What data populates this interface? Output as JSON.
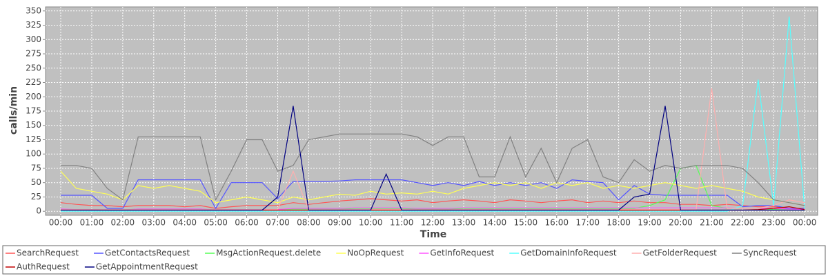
{
  "chart_data": {
    "type": "line",
    "xlabel": "Time",
    "ylabel": "calls/min",
    "x": [
      0,
      0.5,
      1,
      1.5,
      2,
      2.5,
      3,
      3.5,
      4,
      4.5,
      5,
      5.5,
      6,
      6.5,
      7,
      7.5,
      8,
      8.5,
      9,
      9.5,
      10,
      10.5,
      11,
      11.5,
      12,
      12.5,
      13,
      13.5,
      14,
      14.5,
      15,
      15.5,
      16,
      16.5,
      17,
      17.5,
      18,
      18.5,
      19,
      19.5,
      20,
      20.5,
      21,
      21.5,
      22,
      22.5,
      23,
      23.5,
      24
    ],
    "xlim": [
      -0.49,
      24.42
    ],
    "xticks": [
      {
        "value": 0,
        "label": "00:00"
      },
      {
        "value": 1,
        "label": "01:00"
      },
      {
        "value": 2,
        "label": "02:00"
      },
      {
        "value": 3,
        "label": "03:00"
      },
      {
        "value": 4,
        "label": "04:00"
      },
      {
        "value": 5,
        "label": "05:00"
      },
      {
        "value": 6,
        "label": "06:00"
      },
      {
        "value": 7,
        "label": "07:00"
      },
      {
        "value": 8,
        "label": "08:00"
      },
      {
        "value": 9,
        "label": "09:00"
      },
      {
        "value": 10,
        "label": "10:00"
      },
      {
        "value": 11,
        "label": "11:00"
      },
      {
        "value": 12,
        "label": "12:00"
      },
      {
        "value": 13,
        "label": "13:00"
      },
      {
        "value": 14,
        "label": "14:00"
      },
      {
        "value": 15,
        "label": "15:00"
      },
      {
        "value": 16,
        "label": "16:00"
      },
      {
        "value": 17,
        "label": "17:00"
      },
      {
        "value": 18,
        "label": "18:00"
      },
      {
        "value": 19,
        "label": "19:00"
      },
      {
        "value": 20,
        "label": "20:00"
      },
      {
        "value": 21,
        "label": "21:00"
      },
      {
        "value": 22,
        "label": "22:00"
      },
      {
        "value": 23,
        "label": "23:00"
      },
      {
        "value": 24,
        "label": "00:00"
      }
    ],
    "ylim": [
      -7,
      357
    ],
    "yticks": [
      0,
      25,
      50,
      75,
      100,
      125,
      150,
      175,
      200,
      225,
      250,
      275,
      300,
      325,
      350
    ],
    "grid": true,
    "legend": "bottom",
    "series": [
      {
        "name": "SearchRequest",
        "color": "#ff5555",
        "values": [
          15,
          12,
          10,
          10,
          8,
          10,
          10,
          10,
          8,
          10,
          5,
          8,
          10,
          10,
          10,
          15,
          12,
          15,
          18,
          20,
          22,
          20,
          18,
          20,
          15,
          18,
          20,
          18,
          15,
          20,
          18,
          15,
          18,
          20,
          15,
          18,
          15,
          18,
          15,
          15,
          12,
          12,
          10,
          12,
          10,
          8,
          8,
          5,
          5
        ]
      },
      {
        "name": "GetContactsRequest",
        "color": "#5555ff",
        "values": [
          28,
          28,
          28,
          5,
          5,
          55,
          55,
          55,
          55,
          55,
          5,
          50,
          50,
          50,
          22,
          52,
          52,
          52,
          53,
          55,
          55,
          55,
          55,
          50,
          45,
          50,
          45,
          52,
          45,
          50,
          45,
          50,
          40,
          55,
          52,
          50,
          20,
          45,
          30,
          28,
          28,
          28,
          28,
          28,
          8,
          10,
          10,
          5,
          5
        ]
      },
      {
        "name": "MsgActionRequest.delete",
        "color": "#55ff55",
        "values": [
          3,
          3,
          3,
          2,
          2,
          4,
          4,
          4,
          4,
          4,
          2,
          3,
          3,
          3,
          3,
          4,
          4,
          4,
          4,
          5,
          5,
          5,
          5,
          4,
          4,
          4,
          5,
          5,
          5,
          5,
          5,
          5,
          5,
          5,
          5,
          5,
          5,
          5,
          10,
          20,
          75,
          80,
          10,
          5,
          5,
          5,
          3,
          2,
          2
        ]
      },
      {
        "name": "NoOpRequest",
        "color": "#ffff55",
        "values": [
          70,
          40,
          35,
          30,
          20,
          45,
          40,
          45,
          40,
          35,
          15,
          20,
          25,
          20,
          15,
          25,
          20,
          25,
          30,
          28,
          35,
          30,
          32,
          30,
          35,
          30,
          40,
          45,
          50,
          45,
          50,
          40,
          50,
          45,
          50,
          40,
          45,
          40,
          45,
          50,
          45,
          40,
          45,
          40,
          35,
          25,
          20,
          15,
          10
        ]
      },
      {
        "name": "GetInfoRequest",
        "color": "#ff55ff",
        "values": [
          4,
          3,
          3,
          2,
          2,
          4,
          4,
          4,
          4,
          4,
          2,
          3,
          3,
          3,
          3,
          5,
          5,
          5,
          5,
          6,
          6,
          6,
          6,
          5,
          5,
          5,
          6,
          6,
          6,
          6,
          6,
          6,
          6,
          6,
          6,
          6,
          6,
          6,
          6,
          6,
          6,
          6,
          6,
          6,
          5,
          5,
          5,
          4,
          3
        ]
      },
      {
        "name": "GetDomainInfoRequest",
        "color": "#55ffff",
        "values": [
          0,
          0,
          0,
          0,
          0,
          0,
          0,
          0,
          0,
          0,
          0,
          0,
          0,
          0,
          0,
          0,
          0,
          0,
          0,
          0,
          0,
          0,
          0,
          0,
          0,
          0,
          0,
          0,
          0,
          0,
          0,
          0,
          0,
          0,
          0,
          0,
          0,
          0,
          0,
          0,
          0,
          0,
          0,
          0,
          10,
          230,
          10,
          340,
          5
        ]
      },
      {
        "name": "GetFolderRequest",
        "color": "#ffafaf",
        "values": [
          3,
          3,
          3,
          3,
          3,
          3,
          3,
          3,
          3,
          3,
          3,
          3,
          3,
          3,
          3,
          70,
          3,
          3,
          3,
          3,
          3,
          3,
          3,
          3,
          3,
          3,
          3,
          3,
          3,
          3,
          3,
          3,
          3,
          3,
          3,
          3,
          3,
          3,
          3,
          3,
          3,
          3,
          215,
          5,
          5,
          5,
          10,
          20,
          15
        ]
      },
      {
        "name": "SyncRequest",
        "color": "#808080",
        "values": [
          80,
          80,
          75,
          40,
          20,
          130,
          130,
          130,
          130,
          130,
          20,
          70,
          125,
          125,
          70,
          80,
          125,
          130,
          135,
          135,
          135,
          135,
          135,
          130,
          115,
          130,
          130,
          60,
          60,
          130,
          60,
          110,
          50,
          110,
          125,
          60,
          50,
          90,
          70,
          80,
          75,
          80,
          80,
          80,
          75,
          50,
          20,
          15,
          10
        ]
      },
      {
        "name": "AuthRequest",
        "color": "#c00000",
        "values": [
          2,
          2,
          2,
          2,
          2,
          2,
          2,
          2,
          2,
          2,
          2,
          2,
          2,
          2,
          2,
          2,
          2,
          2,
          2,
          2,
          2,
          2,
          2,
          2,
          2,
          2,
          2,
          2,
          2,
          2,
          2,
          2,
          2,
          2,
          2,
          2,
          2,
          2,
          2,
          2,
          2,
          2,
          2,
          2,
          2,
          3,
          5,
          8,
          3
        ]
      },
      {
        "name": "GetAppointmentRequest",
        "color": "#000080",
        "values": [
          2,
          2,
          2,
          2,
          2,
          2,
          2,
          2,
          2,
          2,
          2,
          2,
          2,
          2,
          25,
          184,
          2,
          2,
          2,
          2,
          2,
          65,
          2,
          2,
          2,
          2,
          2,
          2,
          2,
          2,
          2,
          2,
          2,
          2,
          2,
          2,
          2,
          25,
          30,
          184,
          2,
          2,
          2,
          2,
          2,
          2,
          2,
          2,
          2
        ]
      }
    ]
  }
}
